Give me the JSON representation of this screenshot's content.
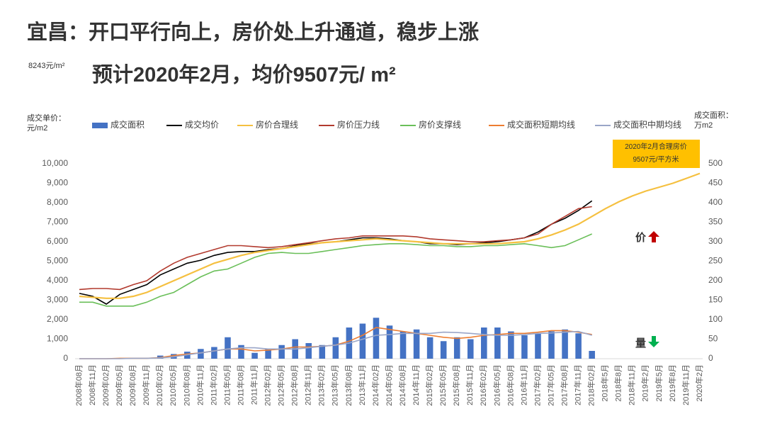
{
  "chart_data": {
    "type": "combo",
    "title": "宜昌：开口平行向上，房价处上升通道，稳步上涨",
    "subtitle": "预计2020年2月，均价9507元/ m²",
    "note": "8243元/m²",
    "y_label": "成交单价：元/m2",
    "y2_label": "成交面积：万m2",
    "annotation": [
      "2020年2月合理房价",
      "9507元/平方米"
    ],
    "price_mark": "价",
    "volume_mark": "量",
    "categories": [
      "2008年08月",
      "2008年11月",
      "2009年02月",
      "2009年05月",
      "2009年08月",
      "2009年11月",
      "2010年02月",
      "2010年05月",
      "2010年08月",
      "2010年11月",
      "2011年02月",
      "2011年05月",
      "2011年08月",
      "2011年11月",
      "2012年02月",
      "2012年05月",
      "2012年08月",
      "2012年11月",
      "2013年02月",
      "2013年05月",
      "2013年08月",
      "2013年11月",
      "2014年02月",
      "2014年05月",
      "2014年08月",
      "2014年11月",
      "2015年02月",
      "2015年05月",
      "2015年08月",
      "2015年11月",
      "2016年02月",
      "2016年05月",
      "2016年08月",
      "2016年11月",
      "2017年02月",
      "2017年05月",
      "2017年08月",
      "2017年11月",
      "2018年02月",
      "2018年5月",
      "2018年8月",
      "2018年11月",
      "2019年2月",
      "2019年5月",
      "2019年8月",
      "2019年11月",
      "2020年2月"
    ],
    "ylim": [
      0,
      10000
    ],
    "yticks": [
      0,
      {
        "value": 1000,
        "label": "1,000"
      },
      {
        "value": 2000,
        "label": "2,000"
      },
      {
        "value": 3000,
        "label": "3,000"
      },
      {
        "value": 4000,
        "label": "4,000"
      },
      {
        "value": 5000,
        "label": "5,000"
      },
      {
        "value": 6000,
        "label": "6,000"
      },
      {
        "value": 7000,
        "label": "7,000"
      },
      {
        "value": 8000,
        "label": "8,000"
      },
      {
        "value": 9000,
        "label": "9,000"
      },
      {
        "value": 10000,
        "label": "10,000"
      }
    ],
    "y2lim": [
      0,
      500
    ],
    "y2ticks": [
      0,
      50,
      100,
      150,
      200,
      250,
      300,
      350,
      400,
      450,
      500
    ],
    "series": [
      {
        "name": "成交面积",
        "type": "bar",
        "axis": "y2",
        "color": "#4472c4",
        "values": [
          0,
          0,
          0,
          1,
          0,
          0,
          8,
          12,
          18,
          25,
          30,
          55,
          35,
          15,
          25,
          35,
          50,
          40,
          35,
          55,
          80,
          90,
          105,
          85,
          70,
          75,
          55,
          45,
          55,
          50,
          80,
          80,
          70,
          60,
          65,
          70,
          75,
          65,
          20,
          null,
          null,
          null,
          null,
          null,
          null,
          null,
          null
        ]
      },
      {
        "name": "成交均价",
        "type": "line",
        "color": "#000000",
        "values": [
          3350,
          3200,
          2800,
          3300,
          3550,
          3800,
          4300,
          4600,
          4900,
          5050,
          5300,
          5450,
          5500,
          5500,
          5600,
          5650,
          5800,
          5900,
          5950,
          6000,
          6100,
          6200,
          6200,
          6150,
          6050,
          6000,
          5900,
          5900,
          5850,
          5900,
          5950,
          6000,
          6100,
          6200,
          6500,
          6900,
          7200,
          7600,
          8100,
          null,
          null,
          null,
          null,
          null,
          null,
          null,
          null
        ]
      },
      {
        "name": "房价合理线",
        "type": "line",
        "color": "#f5c040",
        "values": [
          3200,
          3150,
          3100,
          3100,
          3200,
          3400,
          3700,
          4000,
          4300,
          4600,
          4900,
          5100,
          5300,
          5450,
          5550,
          5650,
          5750,
          5850,
          5950,
          6000,
          6050,
          6100,
          6150,
          6100,
          6050,
          6000,
          5950,
          5900,
          5900,
          5900,
          5900,
          5900,
          5950,
          6000,
          6150,
          6350,
          6600,
          6900,
          7300,
          7700,
          8050,
          8350,
          8600,
          8800,
          9000,
          9250,
          9507
        ]
      },
      {
        "name": "房价压力线",
        "type": "line",
        "color": "#b23a2e",
        "values": [
          3550,
          3600,
          3600,
          3550,
          3800,
          4000,
          4500,
          4900,
          5200,
          5400,
          5600,
          5800,
          5800,
          5750,
          5700,
          5750,
          5850,
          5950,
          6050,
          6150,
          6200,
          6300,
          6300,
          6300,
          6300,
          6250,
          6150,
          6100,
          6050,
          6000,
          6000,
          6050,
          6100,
          6200,
          6400,
          6900,
          7300,
          7700,
          7800,
          null,
          null,
          null,
          null,
          null,
          null,
          null,
          null
        ]
      },
      {
        "name": "房价支撑线",
        "type": "line",
        "color": "#6abf59",
        "values": [
          2900,
          2900,
          2700,
          2700,
          2700,
          2900,
          3200,
          3400,
          3800,
          4200,
          4500,
          4600,
          4900,
          5200,
          5400,
          5450,
          5400,
          5400,
          5500,
          5600,
          5700,
          5800,
          5850,
          5900,
          5900,
          5850,
          5800,
          5800,
          5750,
          5750,
          5800,
          5800,
          5850,
          5900,
          5800,
          5700,
          5800,
          6100,
          6400,
          null,
          null,
          null,
          null,
          null,
          null,
          null,
          null
        ]
      },
      {
        "name": "成交面积短期均线",
        "type": "line",
        "axis": "y2",
        "color": "#ed7d31",
        "values": [
          0,
          0,
          0,
          1,
          1,
          1,
          3,
          8,
          12,
          15,
          20,
          25,
          25,
          20,
          22,
          25,
          30,
          30,
          32,
          35,
          45,
          60,
          80,
          75,
          70,
          65,
          60,
          55,
          52,
          55,
          60,
          62,
          65,
          65,
          68,
          72,
          72,
          68,
          62,
          null,
          null,
          null,
          null,
          null,
          null,
          null,
          null
        ]
      },
      {
        "name": "成交面积中期均线",
        "type": "line",
        "axis": "y2",
        "color": "#9aa6c8",
        "values": [
          0,
          0,
          0,
          0,
          1,
          1,
          2,
          5,
          10,
          15,
          20,
          25,
          28,
          28,
          25,
          25,
          25,
          28,
          32,
          35,
          40,
          50,
          60,
          62,
          65,
          65,
          65,
          68,
          67,
          65,
          62,
          60,
          60,
          62,
          65,
          66,
          68,
          70,
          60,
          null,
          null,
          null,
          null,
          null,
          null,
          null,
          null
        ]
      }
    ]
  }
}
